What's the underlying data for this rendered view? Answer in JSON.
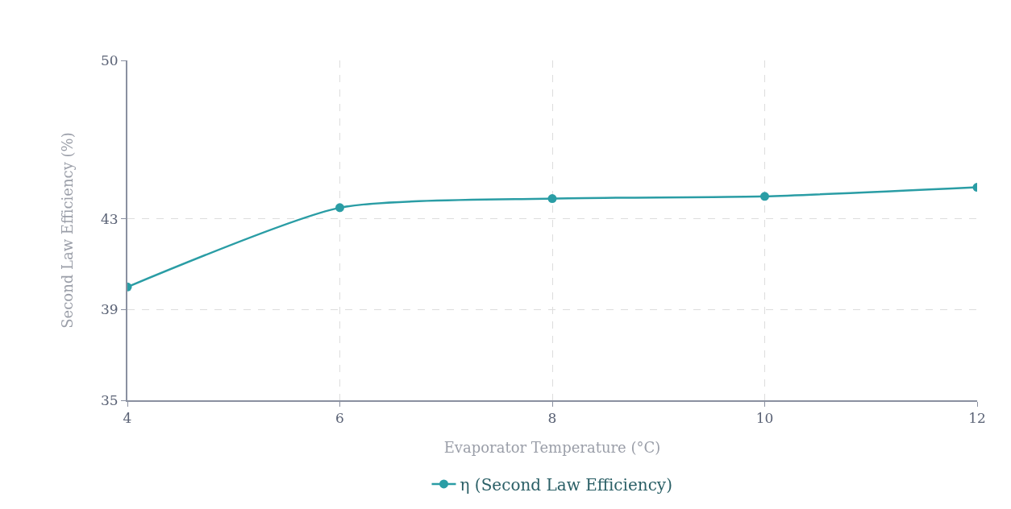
{
  "chart_data": {
    "type": "line",
    "xlabel": "Evaporator Temperature (°C)",
    "ylabel": "Second Law Efficiency (%)",
    "x": [
      4,
      6,
      8,
      10,
      12
    ],
    "series": [
      {
        "name": "η (Second Law Efficiency)",
        "color": "#2a9da5",
        "values": [
          40.0,
          43.5,
          43.9,
          44.0,
          44.4
        ]
      }
    ],
    "xlim": [
      4,
      12
    ],
    "xticks": [
      4,
      6,
      8,
      10,
      12
    ],
    "ylim": [
      35,
      50
    ],
    "yticks": [
      35,
      39,
      43,
      50
    ],
    "grid": true,
    "legend": "bottom",
    "marker": "circle",
    "line_style": "solid"
  }
}
